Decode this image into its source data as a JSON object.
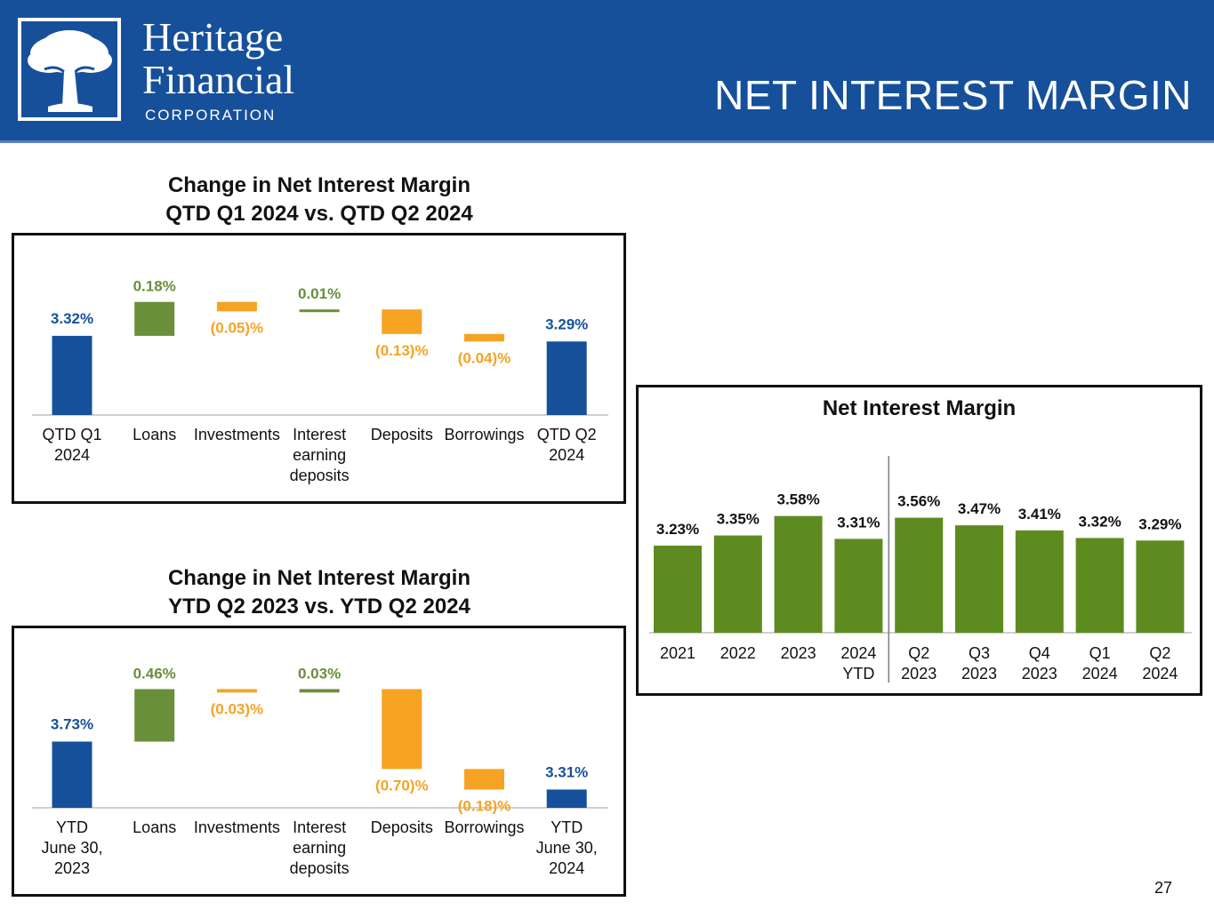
{
  "header": {
    "logo_line1": "Heritage",
    "logo_line2": "Financial",
    "logo_line3": "CORPORATION",
    "title": "NET INTEREST MARGIN",
    "bg_color": "#16509b"
  },
  "colors": {
    "blue": "#16509b",
    "green": "#6a8f3a",
    "orange": "#f6a323",
    "nim_green": "#5e8b1f"
  },
  "page_number": "27",
  "chart_data": [
    {
      "type": "waterfall",
      "title_line1": "Change in Net Interest Margin",
      "title_line2": "QTD Q1 2024 vs. QTD Q2 2024",
      "ylim": [
        2.9,
        3.56
      ],
      "steps": [
        {
          "category": [
            "QTD Q1",
            "2024"
          ],
          "kind": "total",
          "value": 3.32,
          "label": "3.32%"
        },
        {
          "category": [
            "Loans"
          ],
          "kind": "increase",
          "value": 0.18,
          "label": "0.18%"
        },
        {
          "category": [
            "Investments"
          ],
          "kind": "decrease",
          "value": -0.05,
          "label": "(0.05)%"
        },
        {
          "category": [
            "Interest",
            "earning",
            "deposits"
          ],
          "kind": "increase",
          "value": 0.01,
          "label": "0.01%"
        },
        {
          "category": [
            "Deposits"
          ],
          "kind": "decrease",
          "value": -0.13,
          "label": "(0.13)%"
        },
        {
          "category": [
            "Borrowings"
          ],
          "kind": "decrease",
          "value": -0.04,
          "label": "(0.04)%"
        },
        {
          "category": [
            "QTD Q2",
            "2024"
          ],
          "kind": "total",
          "value": 3.29,
          "label": "3.29%"
        }
      ]
    },
    {
      "type": "waterfall",
      "title_line1": "Change in Net Interest Margin",
      "title_line2": "YTD Q2 2023 vs. YTD Q2 2024",
      "ylim": [
        3.15,
        4.24
      ],
      "steps": [
        {
          "category": [
            "YTD",
            "June 30,",
            "2023"
          ],
          "kind": "total",
          "value": 3.73,
          "label": "3.73%"
        },
        {
          "category": [
            "Loans"
          ],
          "kind": "increase",
          "value": 0.46,
          "label": "0.46%"
        },
        {
          "category": [
            "Investments"
          ],
          "kind": "decrease",
          "value": -0.03,
          "label": "(0.03)%"
        },
        {
          "category": [
            "Interest",
            "earning",
            "deposits"
          ],
          "kind": "increase",
          "value": 0.03,
          "label": "0.03%"
        },
        {
          "category": [
            "Deposits"
          ],
          "kind": "decrease",
          "value": -0.7,
          "label": "(0.70)%"
        },
        {
          "category": [
            "Borrowings"
          ],
          "kind": "decrease",
          "value": -0.18,
          "label": "(0.18)%"
        },
        {
          "category": [
            "YTD",
            "June 30,",
            "2024"
          ],
          "kind": "total",
          "value": 3.31,
          "label": "3.31%"
        }
      ]
    },
    {
      "type": "bar",
      "title": "Net Interest Margin",
      "ylim": [
        2.2,
        3.65
      ],
      "divider_after_index": 3,
      "categories": [
        [
          "2021"
        ],
        [
          "2022"
        ],
        [
          "2023"
        ],
        [
          "2024",
          "YTD"
        ],
        [
          "Q2",
          "2023"
        ],
        [
          "Q3",
          "2023"
        ],
        [
          "Q4",
          "2023"
        ],
        [
          "Q1",
          "2024"
        ],
        [
          "Q2",
          "2024"
        ]
      ],
      "values": [
        3.23,
        3.35,
        3.58,
        3.31,
        3.56,
        3.47,
        3.41,
        3.32,
        3.29
      ],
      "labels": [
        "3.23%",
        "3.35%",
        "3.58%",
        "3.31%",
        "3.56%",
        "3.47%",
        "3.41%",
        "3.32%",
        "3.29%"
      ]
    }
  ]
}
